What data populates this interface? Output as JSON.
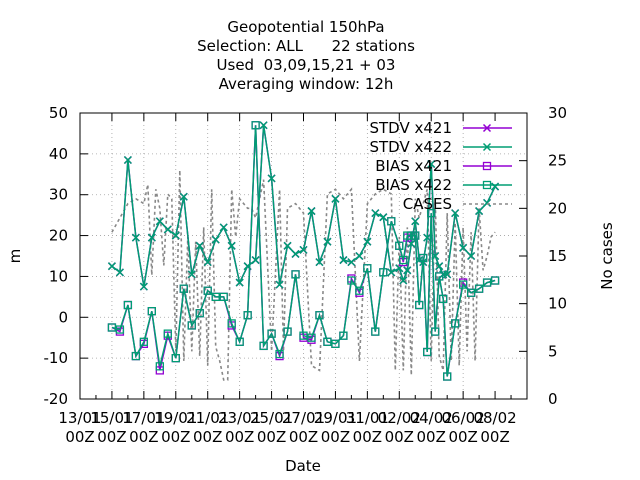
{
  "chart_data": {
    "type": "line",
    "title_lines": [
      "Geopotential 150hPa",
      "Selection: ALL      22 stations",
      "Used  03,09,15,21 + 03",
      "Averaging window: 12h"
    ],
    "xlabel": "Date",
    "ylabel": "m",
    "y2label": "No cases",
    "ylim": [
      -20,
      50
    ],
    "y2lim": [
      0,
      30
    ],
    "y_ticks": [
      "-20",
      "-10",
      "0",
      "10",
      "20",
      "30",
      "40",
      "50"
    ],
    "y2_ticks": [
      "0",
      "5",
      "10",
      "15",
      "20",
      "25",
      "30"
    ],
    "x_ticks": [
      {
        "top": "13/01",
        "bottom": "00Z"
      },
      {
        "top": "15/01",
        "bottom": "00Z"
      },
      {
        "top": "17/01",
        "bottom": "00Z"
      },
      {
        "top": "19/01",
        "bottom": "00Z"
      },
      {
        "top": "21/01",
        "bottom": "00Z"
      },
      {
        "top": "23/01",
        "bottom": "00Z"
      },
      {
        "top": "25/01",
        "bottom": "00Z"
      },
      {
        "top": "27/01",
        "bottom": "00Z"
      },
      {
        "top": "29/01",
        "bottom": "00Z"
      },
      {
        "top": "31/01",
        "bottom": "00Z"
      },
      {
        "top": "02/02",
        "bottom": "00Z"
      },
      {
        "top": "04/02",
        "bottom": "00Z"
      },
      {
        "top": "06/02",
        "bottom": "00Z"
      },
      {
        "top": "08/02",
        "bottom": "00Z"
      }
    ],
    "x_days": [
      2.0,
      2.5,
      3.0,
      3.5,
      4.0,
      4.5,
      5.0,
      5.5,
      6.0,
      6.5,
      7.0,
      7.5,
      8.0,
      8.5,
      9.0,
      9.5,
      10.0,
      10.5,
      11.0,
      11.5,
      12.0,
      12.5,
      13.0,
      13.5,
      14.0,
      14.5,
      15.0,
      15.5,
      16.0,
      16.5,
      17.0,
      17.5,
      18.0,
      18.5,
      19.0,
      19.5,
      20.0,
      20.25,
      20.5,
      20.75,
      21.0,
      21.25,
      21.5,
      21.75,
      22.0,
      22.25,
      22.5,
      22.75,
      23.0,
      23.5,
      24.0,
      24.5,
      25.0,
      25.5,
      26.0
    ],
    "series": [
      {
        "name": "STDV x421",
        "color": "#9400d3",
        "marker": "x",
        "values": [
          12.5,
          11.0,
          38.5,
          19.5,
          7.5,
          19.5,
          23.5,
          21.5,
          20.0,
          29.5,
          10.5,
          17.5,
          13.5,
          19.0,
          22.0,
          17.5,
          8.5,
          12.5,
          14.0,
          47.0,
          34.0,
          8.0,
          17.5,
          15.5,
          16.5,
          26.0,
          13.5,
          18.5,
          29.0,
          14.0,
          13.5,
          15.0,
          18.5,
          25.5,
          24.5,
          11.0,
          12.0,
          9.0,
          11.5,
          18.0,
          23.5,
          14.0,
          13.5,
          19.5,
          37.5,
          15.0,
          12.5,
          10.5,
          10.5,
          25.5,
          17.0,
          15.0,
          26.0,
          28.0,
          32.0
        ]
      },
      {
        "name": "STDV x422",
        "color": "#009e73",
        "marker": "x",
        "values": [
          12.5,
          11.0,
          38.5,
          19.5,
          7.5,
          19.5,
          23.5,
          21.5,
          20.0,
          29.5,
          10.5,
          17.5,
          13.5,
          19.0,
          22.0,
          17.5,
          8.5,
          12.5,
          14.0,
          47.0,
          34.0,
          8.0,
          17.5,
          15.5,
          16.5,
          26.0,
          13.5,
          18.5,
          29.0,
          14.0,
          13.5,
          15.0,
          18.5,
          25.5,
          24.5,
          11.0,
          12.0,
          9.0,
          11.5,
          18.0,
          23.5,
          14.0,
          13.5,
          19.5,
          37.5,
          15.0,
          12.5,
          10.5,
          10.5,
          25.5,
          17.0,
          15.0,
          26.0,
          28.0,
          32.0
        ]
      },
      {
        "name": "BIAS x421",
        "color": "#9400d3",
        "marker": "square",
        "values": [
          -2.5,
          -3.5,
          3.0,
          -9.5,
          -6.5,
          1.5,
          -13.0,
          -4.5,
          -10.0,
          7.0,
          -2.0,
          1.0,
          6.5,
          5.0,
          5.0,
          -2.0,
          -6.0,
          0.5,
          47.0,
          -7.0,
          -4.0,
          -9.5,
          -3.5,
          10.5,
          -5.0,
          -5.5,
          0.5,
          -6.0,
          -6.5,
          -4.5,
          9.5,
          6.0,
          12.0,
          -3.5,
          11.0,
          23.5,
          17.5,
          13.5,
          19.5,
          20.0,
          20.0,
          3.0,
          14.5,
          -8.5,
          25.5,
          -3.5,
          10.0,
          4.5,
          -14.5,
          -1.5,
          8.5,
          6.0,
          7.0,
          8.5,
          9.0
        ]
      },
      {
        "name": "BIAS x422",
        "color": "#009e73",
        "marker": "square",
        "values": [
          -2.5,
          -3.0,
          3.0,
          -9.5,
          -6.0,
          1.5,
          -12.0,
          -4.0,
          -10.0,
          7.0,
          -2.0,
          1.0,
          6.5,
          5.0,
          5.0,
          -1.5,
          -6.0,
          0.5,
          47.0,
          -7.0,
          -4.0,
          -9.0,
          -3.5,
          10.5,
          -4.5,
          -5.0,
          0.5,
          -6.0,
          -6.5,
          -4.5,
          9.0,
          6.5,
          12.0,
          -3.5,
          11.0,
          23.5,
          17.5,
          14.0,
          20.0,
          20.0,
          20.0,
          3.0,
          14.5,
          -8.5,
          25.5,
          -3.5,
          10.0,
          4.5,
          -14.5,
          -1.5,
          8.0,
          6.0,
          7.0,
          8.5,
          9.0
        ]
      }
    ],
    "cases": {
      "name": "CASES",
      "color": "#888888",
      "axis": "y2",
      "x": [
        2.0,
        2.5,
        3.0,
        3.5,
        4.0,
        4.25,
        4.5,
        4.75,
        5.0,
        5.25,
        5.5,
        5.75,
        6.0,
        6.25,
        6.5,
        6.75,
        7.0,
        7.25,
        7.5,
        7.75,
        8.0,
        8.25,
        8.5,
        8.75,
        9.0,
        9.25,
        9.5,
        9.75,
        10.0,
        10.5,
        10.75,
        11.0,
        11.25,
        11.5,
        12.0,
        12.5,
        12.75,
        13.0,
        13.5,
        14.0,
        14.5,
        15.0,
        15.5,
        16.0,
        16.5,
        17.0,
        17.5,
        18.0,
        18.5,
        19.0,
        19.5,
        19.75,
        20.0,
        20.25,
        20.5,
        20.75,
        21.0,
        21.25,
        21.5,
        21.75,
        22.0,
        22.25,
        22.5,
        22.75,
        23.0,
        23.25,
        23.5,
        23.75,
        24.0,
        24.25,
        24.5,
        24.75,
        25.0,
        25.25,
        25.5,
        25.75,
        26.0
      ],
      "values": [
        17.5,
        19.0,
        20.5,
        21.0,
        20.5,
        22.5,
        13.0,
        22.0,
        20.0,
        14.0,
        21.5,
        21.0,
        5.0,
        24.0,
        4.0,
        17.0,
        5.0,
        16.5,
        4.5,
        18.0,
        3.5,
        22.0,
        5.5,
        4.0,
        2.0,
        2.0,
        22.0,
        17.0,
        21.0,
        20.0,
        20.0,
        19.0,
        21.0,
        23.0,
        5.0,
        22.0,
        5.0,
        20.0,
        20.5,
        19.5,
        3.5,
        3.0,
        21.5,
        22.0,
        21.0,
        22.0,
        4.0,
        20.5,
        21.5,
        22.0,
        21.5,
        3.0,
        17.0,
        3.0,
        18.0,
        2.5,
        21.0,
        19.0,
        20.5,
        22.0,
        4.0,
        21.0,
        4.5,
        3.0,
        19.5,
        4.0,
        18.5,
        3.5,
        18.0,
        5.0,
        17.5,
        4.0,
        20.0,
        13.5,
        15.0,
        17.0,
        17.5
      ]
    },
    "legend_position": "top-right",
    "grid": true
  }
}
